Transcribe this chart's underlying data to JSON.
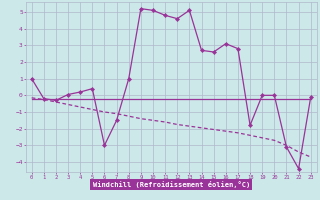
{
  "title": "",
  "xlabel": "Windchill (Refroidissement éolien,°C)",
  "background_color": "#cde8e8",
  "grid_color": "#b0b8cc",
  "line_color": "#993399",
  "xlabel_bg": "#993399",
  "xlabel_fg": "#ffffff",
  "xlim": [
    -0.5,
    23.5
  ],
  "ylim": [
    -4.6,
    5.6
  ],
  "xticks": [
    0,
    1,
    2,
    3,
    4,
    5,
    6,
    7,
    8,
    9,
    10,
    11,
    12,
    13,
    14,
    15,
    16,
    17,
    18,
    19,
    20,
    21,
    22,
    23
  ],
  "yticks": [
    -4,
    -3,
    -2,
    -1,
    0,
    1,
    2,
    3,
    4,
    5
  ],
  "curve1_x": [
    0,
    1,
    2,
    3,
    4,
    5,
    6,
    7,
    8,
    9,
    10,
    11,
    12,
    13,
    14,
    15,
    16,
    17,
    18,
    19,
    20,
    21,
    22,
    23
  ],
  "curve1_y": [
    1.0,
    -0.2,
    -0.3,
    0.05,
    0.2,
    0.4,
    -3.0,
    -1.5,
    1.0,
    5.2,
    5.1,
    4.8,
    4.6,
    5.1,
    2.7,
    2.6,
    3.1,
    2.8,
    -1.8,
    0.0,
    0.0,
    -3.1,
    -4.4,
    -0.1
  ],
  "curve2_x": [
    0,
    23
  ],
  "curve2_y": [
    -0.2,
    -0.2
  ],
  "curve3_x": [
    0,
    1,
    2,
    3,
    4,
    5,
    6,
    7,
    8,
    9,
    10,
    11,
    12,
    13,
    14,
    15,
    16,
    17,
    18,
    19,
    20,
    21,
    22,
    23
  ],
  "curve3_y": [
    -0.15,
    -0.25,
    -0.4,
    -0.55,
    -0.7,
    -0.85,
    -1.0,
    -1.1,
    -1.25,
    -1.4,
    -1.5,
    -1.6,
    -1.75,
    -1.85,
    -1.95,
    -2.05,
    -2.15,
    -2.25,
    -2.4,
    -2.55,
    -2.7,
    -3.0,
    -3.4,
    -3.7
  ]
}
